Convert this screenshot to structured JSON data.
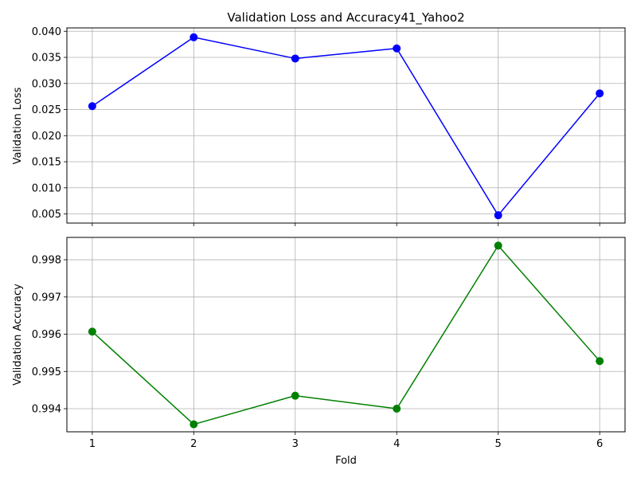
{
  "chart_data": [
    {
      "type": "line",
      "title": "Validation Loss and Accuracy41_Yahoo2",
      "xlabel": "",
      "ylabel": "Validation Loss",
      "x": [
        1,
        2,
        3,
        4,
        5,
        6
      ],
      "series": [
        {
          "values": [
            0.02565,
            0.03885,
            0.03478,
            0.03672,
            0.00475,
            0.0281
          ],
          "color": "#0000ff",
          "marker": "circle"
        }
      ],
      "xlim": [
        0.75,
        6.25
      ],
      "ylim": [
        0.00325,
        0.04065
      ],
      "xticks": [
        "1",
        "2",
        "3",
        "4",
        "5",
        "6"
      ],
      "yticks": [
        "0.005",
        "0.010",
        "0.015",
        "0.020",
        "0.025",
        "0.030",
        "0.035",
        "0.040"
      ],
      "grid": true
    },
    {
      "type": "line",
      "title": "",
      "xlabel": "Fold",
      "ylabel": "Validation Accuracy",
      "x": [
        1,
        2,
        3,
        4,
        5,
        6
      ],
      "series": [
        {
          "values": [
            0.99607,
            0.99358,
            0.99435,
            0.994,
            0.99838,
            0.99528
          ],
          "color": "#008000",
          "marker": "circle"
        }
      ],
      "xlim": [
        0.75,
        6.25
      ],
      "ylim": [
        0.99338,
        0.9986
      ],
      "xticks": [
        "1",
        "2",
        "3",
        "4",
        "5",
        "6"
      ],
      "yticks": [
        "0.994",
        "0.995",
        "0.996",
        "0.997",
        "0.998"
      ],
      "grid": true
    }
  ]
}
